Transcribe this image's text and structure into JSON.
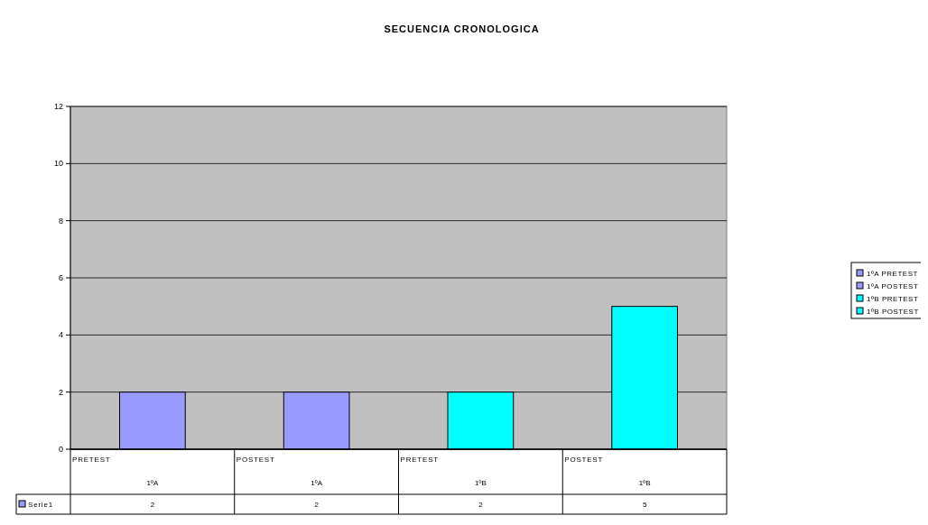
{
  "chart_data": {
    "type": "bar",
    "title": "SECUENCIA CRONOLOGICA",
    "categories": [
      "PRETEST\n1ºA",
      "POSTEST\n1ºA",
      "PRETEST\n1ºB",
      "POSTEST\n1ºB"
    ],
    "series": [
      {
        "name": "Serie1",
        "color": "#9999ff",
        "colors": [
          "#9999ff",
          "#9999ff",
          "#00ffff",
          "#00ffff"
        ],
        "values": [
          2,
          2,
          2,
          5
        ]
      }
    ],
    "annotations": [
      "1ºA PRETEST",
      "1ºA POSTEST",
      "1ºB PRETEST",
      "1ºB POSTEST"
    ],
    "ylim": [
      0,
      12
    ],
    "yticks": [
      0,
      2,
      4,
      6,
      8,
      10,
      12
    ],
    "grid": "y",
    "legend": "bottom left",
    "data_labels": true
  }
}
